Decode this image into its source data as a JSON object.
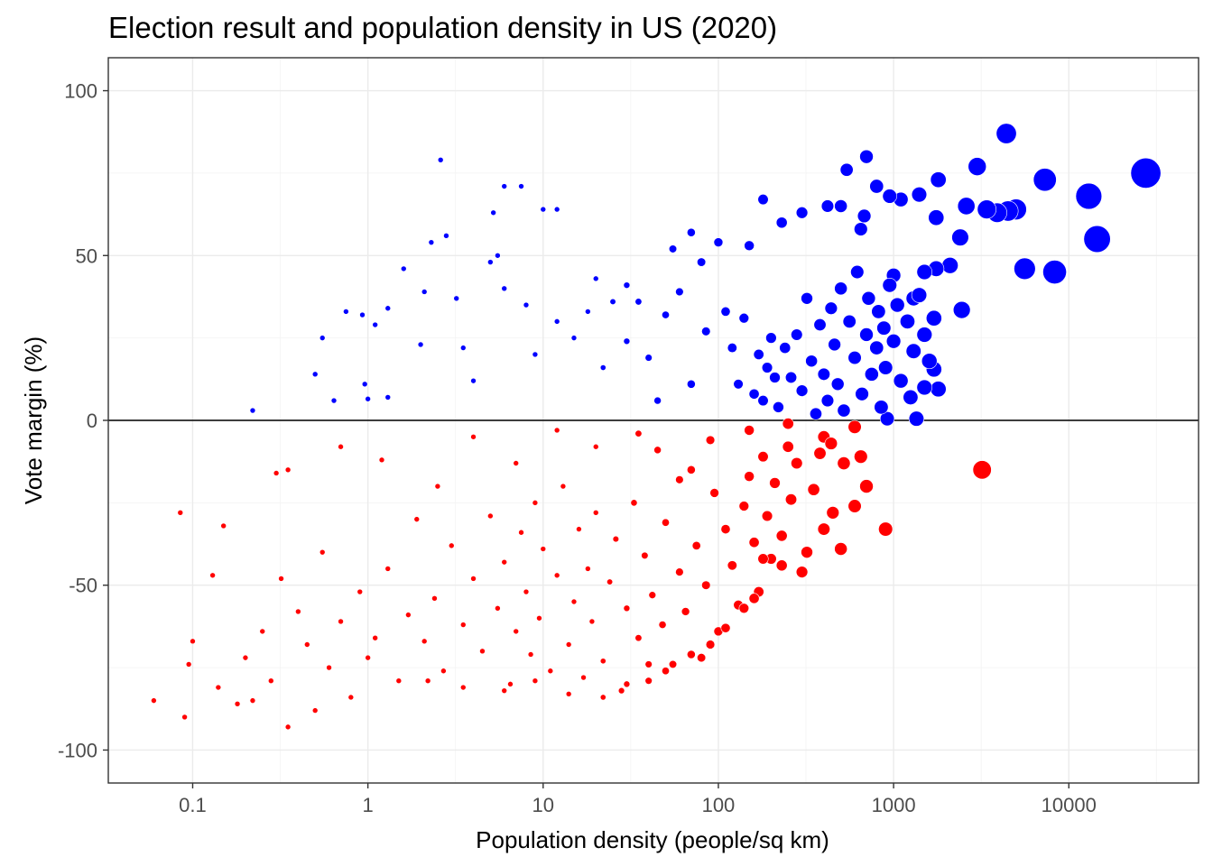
{
  "chart_data": {
    "type": "scatter",
    "title": "Election result and population density in US (2020)",
    "xlabel": "Population density (people/sq km)",
    "ylabel": "Vote margin (%)",
    "x_scale": "log10",
    "xlim": [
      0.033,
      55000
    ],
    "ylim": [
      -110,
      110
    ],
    "x_ticks": [
      0.1,
      1,
      10,
      100,
      1000,
      10000
    ],
    "x_tick_labels": [
      "0.1",
      "1",
      "10",
      "100",
      "1000",
      "10000"
    ],
    "y_ticks": [
      100,
      50,
      0,
      -50,
      -100
    ],
    "y_tick_labels": [
      "100",
      "50",
      "0",
      "-50",
      "-100"
    ],
    "grid": true,
    "reference_line_y": 0,
    "colors": {
      "positive": "#0000ff",
      "negative": "#ff0000",
      "reference_line": "#000000"
    },
    "points": [
      [
        27500,
        75
      ],
      [
        14500,
        55
      ],
      [
        13000,
        68
      ],
      [
        8300,
        45
      ],
      [
        7300,
        73
      ],
      [
        5600,
        46
      ],
      [
        4400,
        87
      ],
      [
        5000,
        64
      ],
      [
        4500,
        63.5
      ],
      [
        3900,
        63
      ],
      [
        3400,
        64
      ],
      [
        3000,
        77
      ],
      [
        2600,
        65
      ],
      [
        2450,
        33.5
      ],
      [
        2400,
        55.5
      ],
      [
        2100,
        47
      ],
      [
        1800,
        73
      ],
      [
        1750,
        46
      ],
      [
        1750,
        61.5
      ],
      [
        1700,
        15.5
      ],
      [
        1800,
        9.5
      ],
      [
        1500,
        45
      ],
      [
        1500,
        10
      ],
      [
        1400,
        68.5
      ],
      [
        1350,
        0.5
      ],
      [
        1300,
        37
      ],
      [
        1100,
        67
      ],
      [
        950,
        68
      ],
      [
        920,
        0.5
      ],
      [
        1000,
        44
      ],
      [
        800,
        71
      ],
      [
        700,
        80
      ],
      [
        680,
        62
      ],
      [
        650,
        58
      ],
      [
        540,
        76
      ],
      [
        500,
        65
      ],
      [
        420,
        65
      ],
      [
        300,
        63
      ],
      [
        230,
        60
      ],
      [
        180,
        67
      ],
      [
        150,
        53
      ],
      [
        100,
        54
      ],
      [
        70,
        57
      ],
      [
        80,
        48
      ],
      [
        55,
        52
      ],
      [
        30,
        41
      ],
      [
        20,
        43
      ],
      [
        10,
        64
      ],
      [
        12,
        64
      ],
      [
        6,
        71
      ],
      [
        7.5,
        71
      ],
      [
        5.2,
        63
      ],
      [
        5,
        48
      ],
      [
        5.5,
        50
      ],
      [
        3.2,
        37
      ],
      [
        2.8,
        56
      ],
      [
        2.6,
        79
      ],
      [
        2.3,
        54
      ],
      [
        2.1,
        39
      ],
      [
        1.6,
        46
      ],
      [
        1.3,
        34
      ],
      [
        1.1,
        29
      ],
      [
        0.93,
        32
      ],
      [
        0.75,
        33
      ],
      [
        0.55,
        25
      ],
      [
        0.5,
        14
      ],
      [
        0.64,
        6
      ],
      [
        0.96,
        11
      ],
      [
        1.0,
        6.5
      ],
      [
        1.3,
        7
      ],
      [
        0.22,
        3
      ],
      [
        2.0,
        23
      ],
      [
        3.5,
        22
      ],
      [
        4,
        12
      ],
      [
        6,
        40
      ],
      [
        8,
        35
      ],
      [
        9,
        20
      ],
      [
        12,
        30
      ],
      [
        15,
        25
      ],
      [
        18,
        33
      ],
      [
        22,
        16
      ],
      [
        25,
        36
      ],
      [
        30,
        24
      ],
      [
        35,
        36
      ],
      [
        40,
        19
      ],
      [
        45,
        6
      ],
      [
        50,
        32
      ],
      [
        60,
        39
      ],
      [
        70,
        11
      ],
      [
        85,
        27
      ],
      [
        110,
        33
      ],
      [
        120,
        22
      ],
      [
        130,
        11
      ],
      [
        140,
        31
      ],
      [
        160,
        8
      ],
      [
        170,
        20
      ],
      [
        180,
        6
      ],
      [
        190,
        16
      ],
      [
        200,
        25
      ],
      [
        210,
        13
      ],
      [
        220,
        4
      ],
      [
        240,
        22
      ],
      [
        260,
        13
      ],
      [
        280,
        26
      ],
      [
        300,
        9
      ],
      [
        320,
        37
      ],
      [
        340,
        18
      ],
      [
        360,
        2
      ],
      [
        380,
        29
      ],
      [
        400,
        14
      ],
      [
        420,
        6
      ],
      [
        440,
        34
      ],
      [
        460,
        23
      ],
      [
        480,
        11
      ],
      [
        500,
        40
      ],
      [
        520,
        3
      ],
      [
        560,
        30
      ],
      [
        600,
        19
      ],
      [
        620,
        45
      ],
      [
        660,
        8
      ],
      [
        700,
        26
      ],
      [
        720,
        37
      ],
      [
        750,
        14
      ],
      [
        800,
        22
      ],
      [
        820,
        33
      ],
      [
        850,
        4
      ],
      [
        880,
        28
      ],
      [
        900,
        16
      ],
      [
        950,
        41
      ],
      [
        1000,
        24
      ],
      [
        1050,
        35
      ],
      [
        1100,
        12
      ],
      [
        1200,
        30
      ],
      [
        1250,
        7
      ],
      [
        1300,
        21
      ],
      [
        1400,
        38
      ],
      [
        1500,
        26
      ],
      [
        1600,
        18
      ],
      [
        1700,
        31
      ],
      [
        3200,
        -15
      ],
      [
        900,
        -33
      ],
      [
        500,
        -39
      ],
      [
        450,
        -28
      ],
      [
        400,
        -33
      ],
      [
        350,
        -21
      ],
      [
        320,
        -40
      ],
      [
        300,
        -46
      ],
      [
        280,
        -13
      ],
      [
        260,
        -24
      ],
      [
        250,
        -8
      ],
      [
        230,
        -35
      ],
      [
        210,
        -19
      ],
      [
        200,
        -42
      ],
      [
        190,
        -29
      ],
      [
        180,
        -11
      ],
      [
        170,
        -52
      ],
      [
        160,
        -37
      ],
      [
        150,
        -17
      ],
      [
        140,
        -26
      ],
      [
        130,
        -56
      ],
      [
        120,
        -44
      ],
      [
        110,
        -33
      ],
      [
        100,
        -64
      ],
      [
        95,
        -22
      ],
      [
        85,
        -50
      ],
      [
        80,
        -72
      ],
      [
        75,
        -38
      ],
      [
        70,
        -15
      ],
      [
        65,
        -58
      ],
      [
        60,
        -46
      ],
      [
        55,
        -74
      ],
      [
        50,
        -31
      ],
      [
        48,
        -62
      ],
      [
        45,
        -9
      ],
      [
        42,
        -53
      ],
      [
        40,
        -79
      ],
      [
        38,
        -41
      ],
      [
        35,
        -66
      ],
      [
        33,
        -25
      ],
      [
        30,
        -57
      ],
      [
        28,
        -82
      ],
      [
        26,
        -36
      ],
      [
        24,
        -49
      ],
      [
        22,
        -73
      ],
      [
        20,
        -28
      ],
      [
        19,
        -61
      ],
      [
        18,
        -45
      ],
      [
        17,
        -78
      ],
      [
        16,
        -33
      ],
      [
        15,
        -55
      ],
      [
        14,
        -68
      ],
      [
        13,
        -20
      ],
      [
        12,
        -47
      ],
      [
        11,
        -76
      ],
      [
        10,
        -39
      ],
      [
        9.5,
        -60
      ],
      [
        9,
        -25
      ],
      [
        8.5,
        -71
      ],
      [
        8,
        -52
      ],
      [
        7.5,
        -34
      ],
      [
        7,
        -64
      ],
      [
        6.5,
        -80
      ],
      [
        6,
        -43
      ],
      [
        5.5,
        -57
      ],
      [
        5,
        -29
      ],
      [
        4.5,
        -70
      ],
      [
        4,
        -48
      ],
      [
        3.5,
        -62
      ],
      [
        3,
        -38
      ],
      [
        2.7,
        -76
      ],
      [
        2.4,
        -54
      ],
      [
        2.1,
        -67
      ],
      [
        1.9,
        -30
      ],
      [
        1.7,
        -59
      ],
      [
        1.5,
        -79
      ],
      [
        1.3,
        -45
      ],
      [
        1.1,
        -66
      ],
      [
        1.0,
        -72
      ],
      [
        0.9,
        -52
      ],
      [
        0.8,
        -84
      ],
      [
        0.7,
        -61
      ],
      [
        0.6,
        -75
      ],
      [
        0.55,
        -40
      ],
      [
        0.5,
        -88
      ],
      [
        0.45,
        -68
      ],
      [
        0.4,
        -58
      ],
      [
        0.35,
        -93
      ],
      [
        0.32,
        -48
      ],
      [
        0.3,
        -16
      ],
      [
        0.28,
        -79
      ],
      [
        0.25,
        -64
      ],
      [
        0.22,
        -85
      ],
      [
        0.2,
        -72
      ],
      [
        0.18,
        -86
      ],
      [
        0.15,
        -32
      ],
      [
        0.14,
        -81
      ],
      [
        0.13,
        -47
      ],
      [
        0.1,
        -67
      ],
      [
        0.095,
        -74
      ],
      [
        0.09,
        -90
      ],
      [
        0.085,
        -28
      ],
      [
        0.06,
        -85
      ],
      [
        0.35,
        -15
      ],
      [
        0.7,
        -8
      ],
      [
        1.2,
        -12
      ],
      [
        2.5,
        -20
      ],
      [
        4,
        -5
      ],
      [
        7,
        -13
      ],
      [
        12,
        -3
      ],
      [
        20,
        -8
      ],
      [
        35,
        -4
      ],
      [
        60,
        -18
      ],
      [
        90,
        -6
      ],
      [
        150,
        -3
      ],
      [
        250,
        -1
      ],
      [
        400,
        -5
      ],
      [
        600,
        -2
      ],
      [
        700,
        -20
      ],
      [
        650,
        -11
      ],
      [
        520,
        -13
      ],
      [
        440,
        -7
      ],
      [
        380,
        -10
      ],
      [
        600,
        -26
      ],
      [
        230,
        -44
      ],
      [
        180,
        -42
      ],
      [
        160,
        -54
      ],
      [
        140,
        -57
      ],
      [
        110,
        -63
      ],
      [
        90,
        -68
      ],
      [
        70,
        -71
      ],
      [
        50,
        -76
      ],
      [
        40,
        -74
      ],
      [
        30,
        -80
      ],
      [
        22,
        -84
      ],
      [
        14,
        -83
      ],
      [
        9,
        -79
      ],
      [
        6,
        -82
      ],
      [
        3.5,
        -81
      ],
      [
        2.2,
        -79
      ]
    ]
  }
}
